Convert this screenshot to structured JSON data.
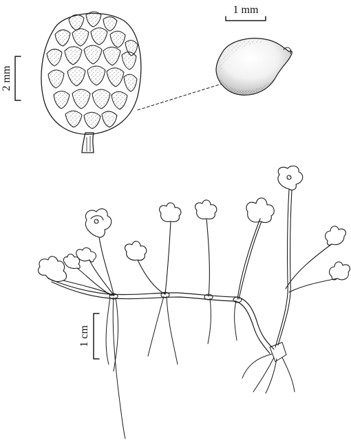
{
  "scale_bars": {
    "fruit_head": {
      "label": "2 mm"
    },
    "achene": {
      "label": "1 mm"
    },
    "plant": {
      "label": "1 cm"
    }
  },
  "colors": {
    "ink": "#1a1a1a",
    "paper": "#ffffff"
  }
}
